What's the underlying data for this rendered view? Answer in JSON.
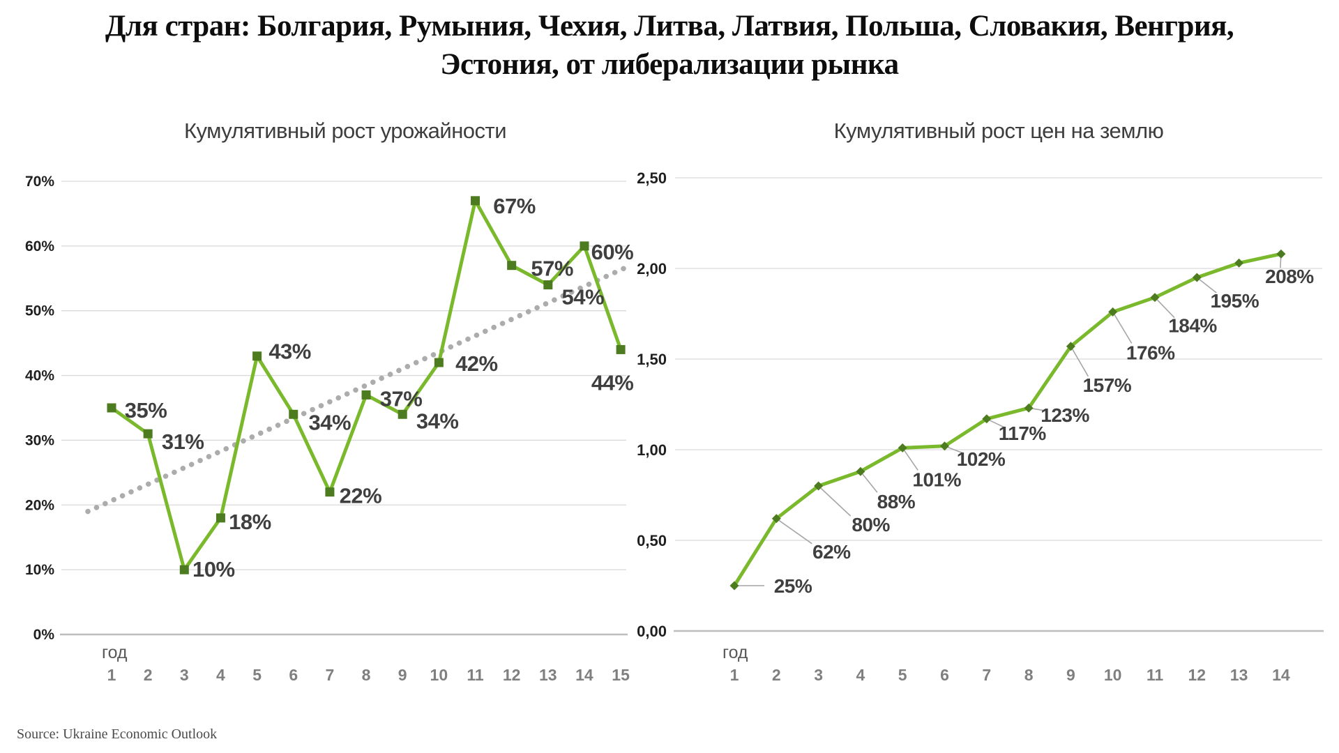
{
  "title": {
    "line1": "Для стран: Болгария, Румыния, Чехия, Литва, Латвия, Польша, Словакия, Венгрия,",
    "line2": "Эстония, от либерализации рынка"
  },
  "source": "Source: Ukraine Economic Outlook",
  "colors": {
    "series_green": "#7ab82c",
    "marker_green": "#4c7c1f",
    "data_label_gray": "#3f3f3f",
    "grid_gray": "#d9d9d9",
    "trendline_gray": "#acacac"
  },
  "chart_data": [
    {
      "type": "line",
      "title": "Кумулятивный рост урожайности",
      "x_label": "год",
      "x": [
        1,
        2,
        3,
        4,
        5,
        6,
        7,
        8,
        9,
        10,
        11,
        12,
        13,
        14,
        15
      ],
      "values_pct": [
        35,
        31,
        10,
        18,
        43,
        34,
        22,
        37,
        34,
        42,
        67,
        57,
        54,
        60,
        44
      ],
      "point_labels": [
        "35%",
        "31%",
        "10%",
        "18%",
        "43%",
        "34%",
        "22%",
        "37%",
        "34%",
        "42%",
        "67%",
        "57%",
        "54%",
        "60%",
        "44%"
      ],
      "y_ticks": [
        "70%",
        "60%",
        "50%",
        "40%",
        "30%",
        "20%",
        "10%",
        "0%"
      ],
      "ylim_pct": [
        0,
        70
      ],
      "grid": true,
      "legend": "none",
      "marker": "square",
      "trendline": {
        "style": "dotted",
        "approx_start_pct": 19,
        "approx_end_pct": 57
      }
    },
    {
      "type": "line",
      "title": "Кумулятивный рост цен на землю",
      "x_label": "год",
      "x": [
        1,
        2,
        3,
        4,
        5,
        6,
        7,
        8,
        9,
        10,
        11,
        12,
        13,
        14
      ],
      "values": [
        0.25,
        0.62,
        0.8,
        0.88,
        1.01,
        1.02,
        1.17,
        1.23,
        1.57,
        1.76,
        1.84,
        1.95,
        2.03,
        2.08
      ],
      "point_labels": [
        "25%",
        "62%",
        "80%",
        "88%",
        "101%",
        "102%",
        "117%",
        "123%",
        "157%",
        "176%",
        "184%",
        "195%",
        null,
        "208%"
      ],
      "y_ticks": [
        "2,50",
        "2,00",
        "1,50",
        "1,00",
        "0,50",
        "0,00"
      ],
      "ylim": [
        0,
        2.5
      ],
      "grid": true,
      "legend": "none",
      "marker": "diamond",
      "trendline": null
    }
  ]
}
